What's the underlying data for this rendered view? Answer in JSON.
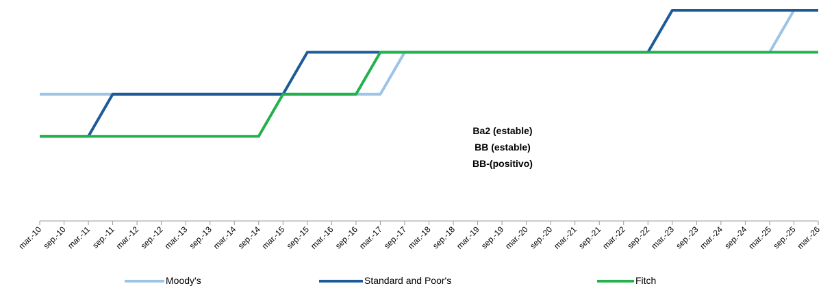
{
  "chart_data": {
    "type": "line",
    "categories": [
      "mar.-10",
      "sep.-10",
      "mar.-11",
      "sep.-11",
      "mar.-12",
      "sep.-12",
      "mar.-13",
      "sep.-13",
      "mar.-14",
      "sep.-14",
      "mar.-15",
      "sep.-15",
      "mar.-16",
      "sep.-16",
      "mar.-17",
      "sep.-17",
      "mar.-18",
      "sep.-18",
      "mar.-19",
      "sep.-19",
      "mar.-20",
      "sep.-20",
      "mar.-21",
      "sep.-21",
      "mar.-22",
      "sep.-22",
      "mar.-23",
      "sep.-23",
      "mar.-24",
      "sep.-24",
      "mar.-25",
      "sep.-25",
      "mar.-26"
    ],
    "series": [
      {
        "name": "Moody's",
        "color": "#9dc3e6",
        "values": [
          3,
          3,
          3,
          3,
          3,
          3,
          3,
          3,
          3,
          3,
          3,
          3,
          3,
          3,
          3,
          4,
          4,
          4,
          4,
          4,
          4,
          4,
          4,
          4,
          4,
          4,
          4,
          4,
          4,
          4,
          4,
          5,
          5
        ]
      },
      {
        "name": "Standard and Poor's",
        "color": "#1c5a99",
        "values": [
          2,
          2,
          2,
          3,
          3,
          3,
          3,
          3,
          3,
          3,
          3,
          4,
          4,
          4,
          4,
          4,
          4,
          4,
          4,
          4,
          4,
          4,
          4,
          4,
          4,
          4,
          5,
          5,
          5,
          5,
          5,
          5,
          5
        ]
      },
      {
        "name": "Fitch",
        "color": "#22b14c",
        "values": [
          2,
          2,
          2,
          2,
          2,
          2,
          2,
          2,
          2,
          2,
          3,
          3,
          3,
          3,
          4,
          4,
          4,
          4,
          4,
          4,
          4,
          4,
          4,
          4,
          4,
          4,
          4,
          4,
          4,
          4,
          4,
          4,
          4
        ]
      }
    ],
    "annotations": [
      "Ba2 (estable)",
      "BB (estable)",
      "BB-(positivo)"
    ],
    "ylim": [
      0,
      5
    ]
  }
}
